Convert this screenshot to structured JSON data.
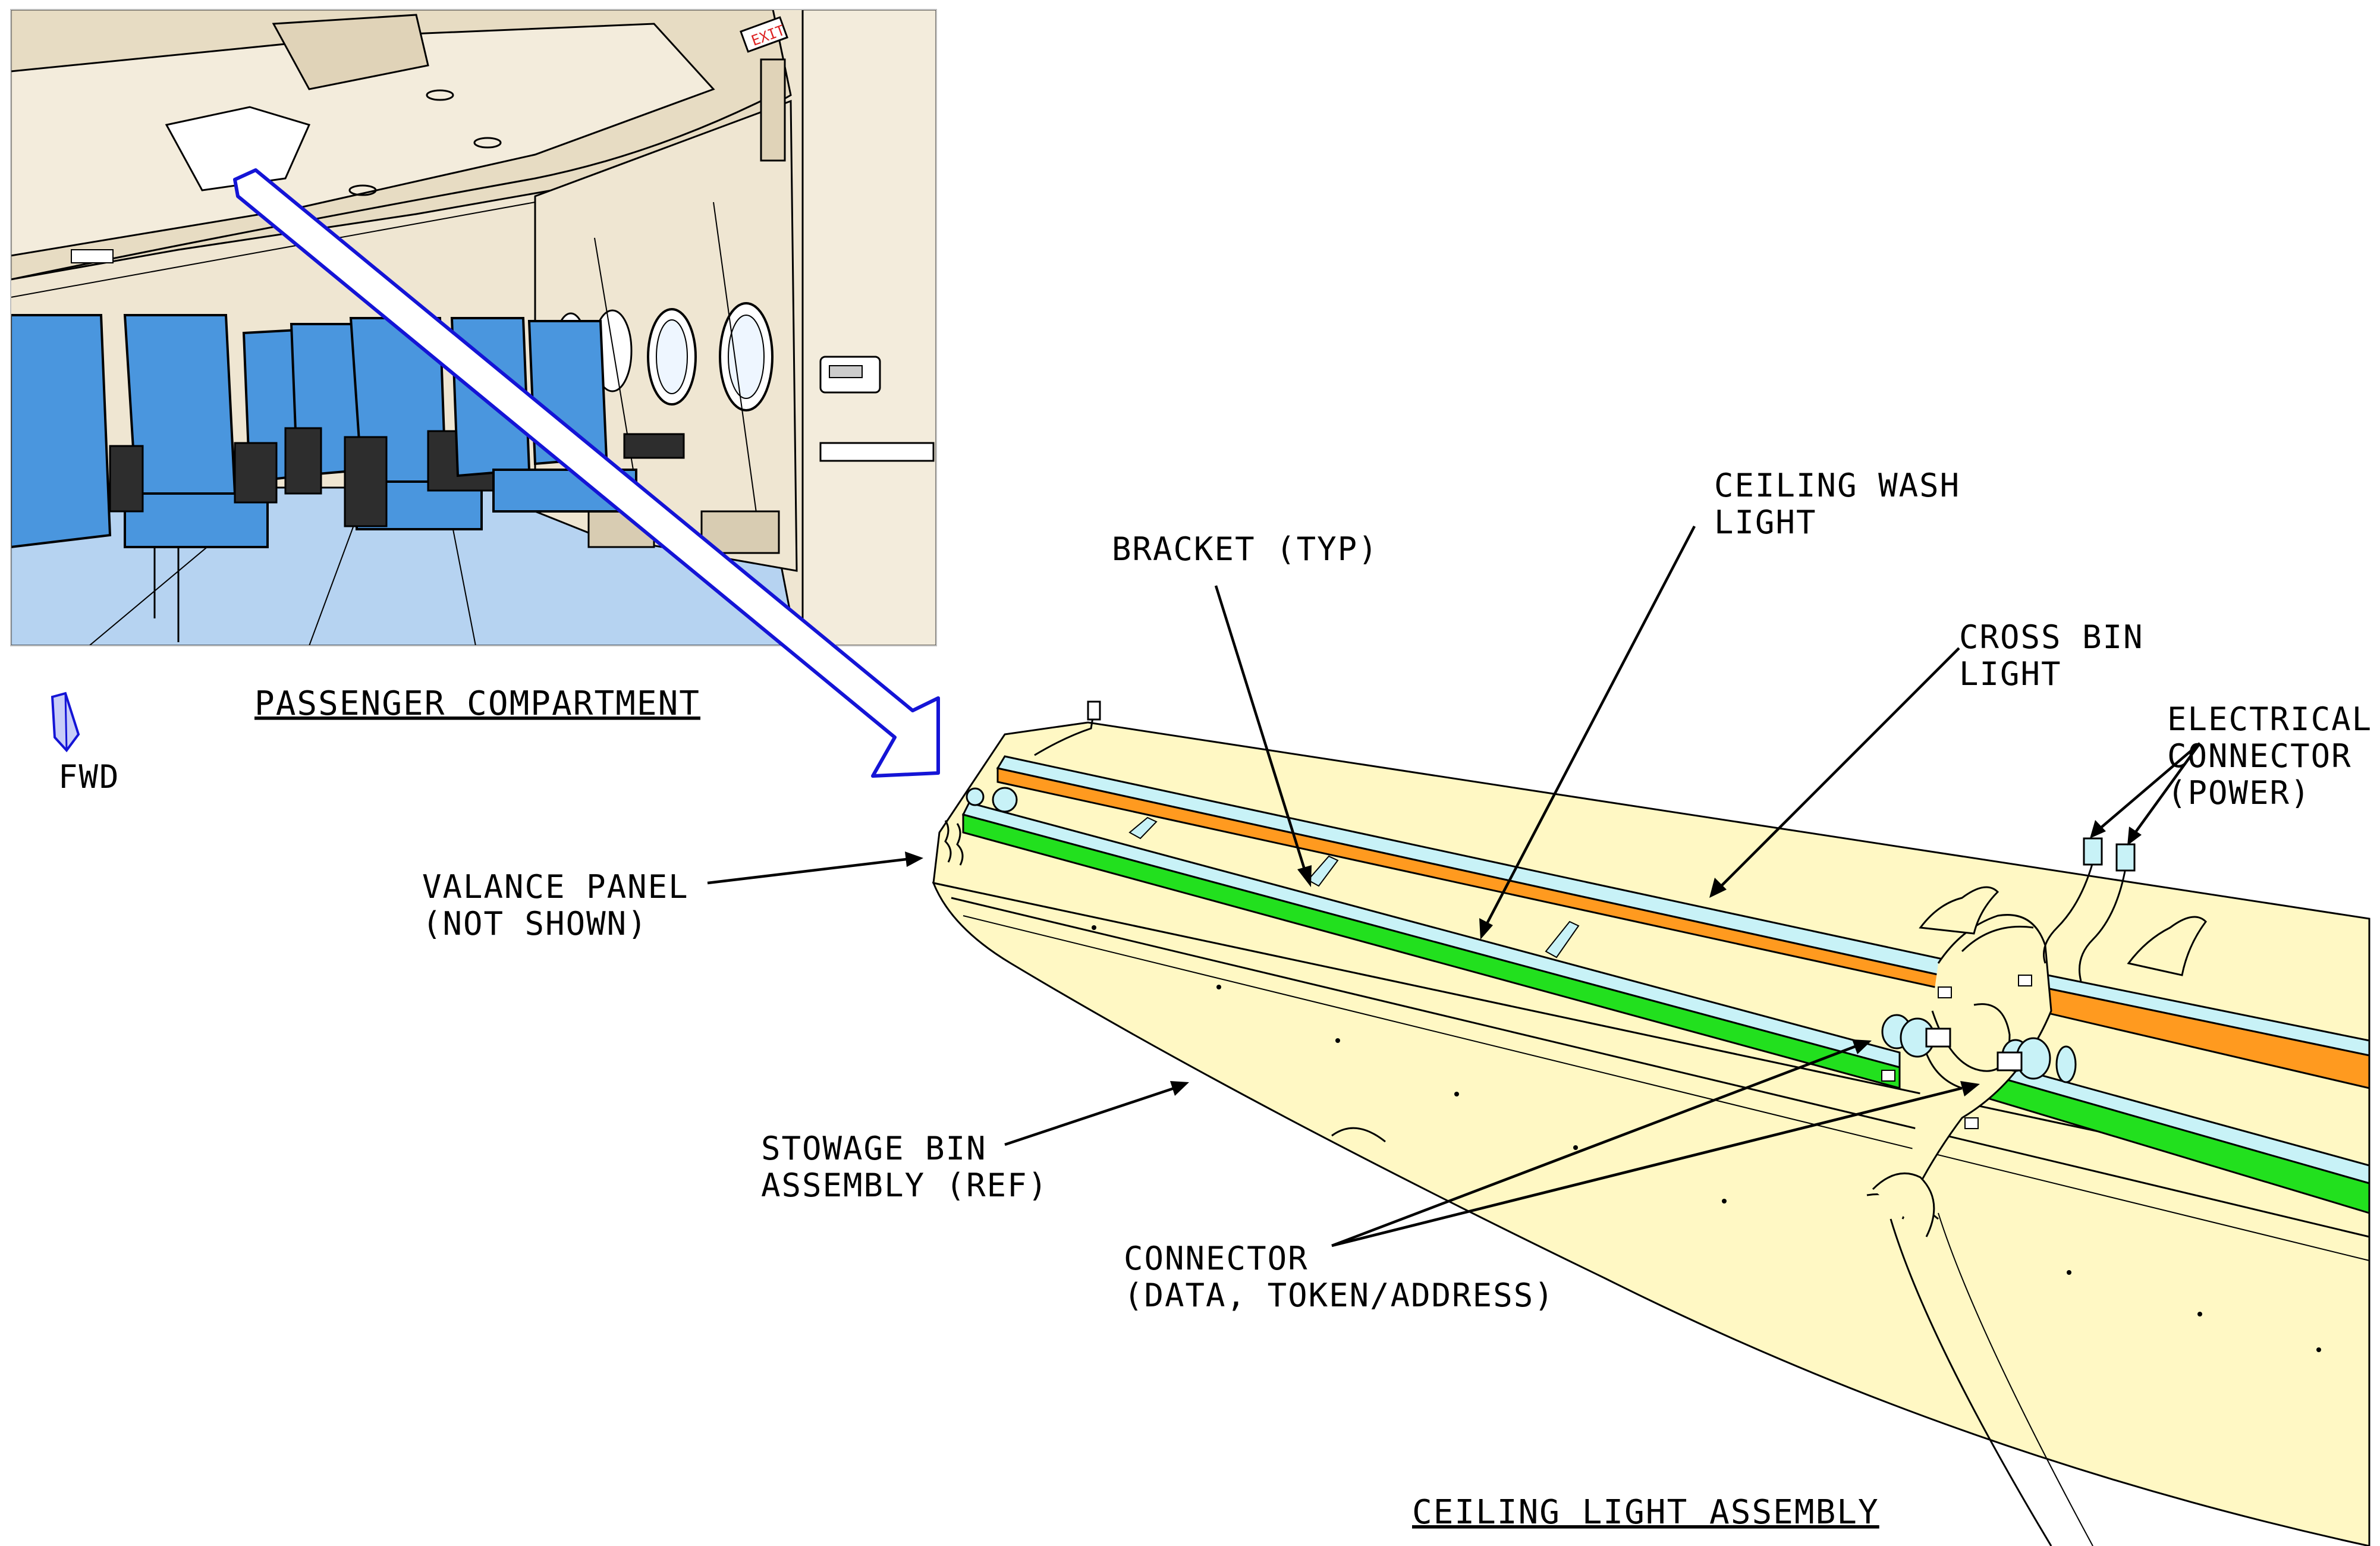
{
  "labels": {
    "passenger_compartment": "PASSENGER COMPARTMENT",
    "fwd": "FWD",
    "bracket": "BRACKET (TYP)",
    "ceiling_wash_light_1": "CEILING WASH",
    "ceiling_wash_light_2": "LIGHT",
    "cross_bin_light_1": "CROSS BIN",
    "cross_bin_light_2": "LIGHT",
    "electrical_connector_1": "ELECTRICAL",
    "electrical_connector_2": "CONNECTOR",
    "electrical_connector_3": "(POWER)",
    "valance_panel_1": "VALANCE PANEL",
    "valance_panel_2": "(NOT SHOWN)",
    "stowage_bin_1": "STOWAGE BIN",
    "stowage_bin_2": "ASSEMBLY (REF)",
    "connector_data_1": "CONNECTOR",
    "connector_data_2": "(DATA, TOKEN/ADDRESS)",
    "ceiling_light_assembly": "CEILING LIGHT ASSEMBLY",
    "exit_sign": "EXIT"
  },
  "colors": {
    "cross_bin_light": "#ff9a1f",
    "ceiling_wash_light": "#22e01e",
    "light_housing": "#c8f2f7",
    "stowage_bin": "#fff8c4",
    "cabin_wall": "#efe6d2",
    "seat": "#4a96de",
    "floor": "#b6d3f1",
    "pointer_arrow": "#1414d6"
  }
}
